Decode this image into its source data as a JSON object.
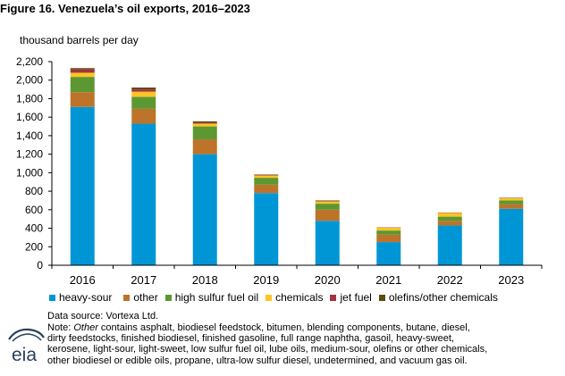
{
  "title": "Figure 16. Venezuela’s oil exports, 2016–2023",
  "y_unit_label": "thousand barrels per day",
  "source": "Data source: Vortexa Ltd.",
  "note": {
    "prefix": "Note: ",
    "italic": "Other",
    "lines": [
      " contains asphalt, biodiesel feedstock, bitumen, blending components, butane, diesel,",
      "dirty feedstocks, finished biodiesel, finished gasoline, full range naphtha, gasoil, heavy-sweet,",
      "kerosene, light-sour, light-sweet, low sulfur fuel oil, lube oils, medium-sour, olefins or other chemicals,",
      "other biodiesel or edible oils, propane, ultra-low sulfur diesel, undetermined, and vacuum gas oil."
    ]
  },
  "logo_text": "eia",
  "chart_data": {
    "type": "bar",
    "stacked": true,
    "categories": [
      "2016",
      "2017",
      "2018",
      "2019",
      "2020",
      "2021",
      "2022",
      "2023"
    ],
    "ylim": [
      0,
      2200
    ],
    "yticks": [
      0,
      200,
      400,
      600,
      800,
      1000,
      1200,
      1400,
      1600,
      1800,
      2000,
      2200
    ],
    "ytick_labels": [
      "0",
      "200",
      "400",
      "600",
      "800",
      "1,000",
      "1,200",
      "1,400",
      "1,600",
      "1,800",
      "2,000",
      "2,200"
    ],
    "grid": false,
    "legend_position": "bottom",
    "series": [
      {
        "name": "heavy-sour",
        "color": "#0096d6",
        "values": [
          1710,
          1530,
          1200,
          780,
          480,
          250,
          430,
          610
        ]
      },
      {
        "name": "other",
        "color": "#bd732a",
        "values": [
          160,
          160,
          160,
          90,
          120,
          80,
          50,
          50
        ]
      },
      {
        "name": "high sulfur fuel oil",
        "color": "#5d9732",
        "values": [
          165,
          130,
          140,
          75,
          65,
          45,
          45,
          40
        ]
      },
      {
        "name": "chemicals",
        "color": "#ffc423",
        "values": [
          45,
          55,
          30,
          25,
          25,
          30,
          40,
          25
        ]
      },
      {
        "name": "jet fuel",
        "color": "#a33340",
        "values": [
          35,
          25,
          10,
          5,
          5,
          3,
          3,
          3
        ]
      },
      {
        "name": "olefins/other chemicals",
        "color": "#5d4b0f",
        "values": [
          15,
          20,
          15,
          5,
          5,
          2,
          2,
          2
        ]
      }
    ]
  }
}
